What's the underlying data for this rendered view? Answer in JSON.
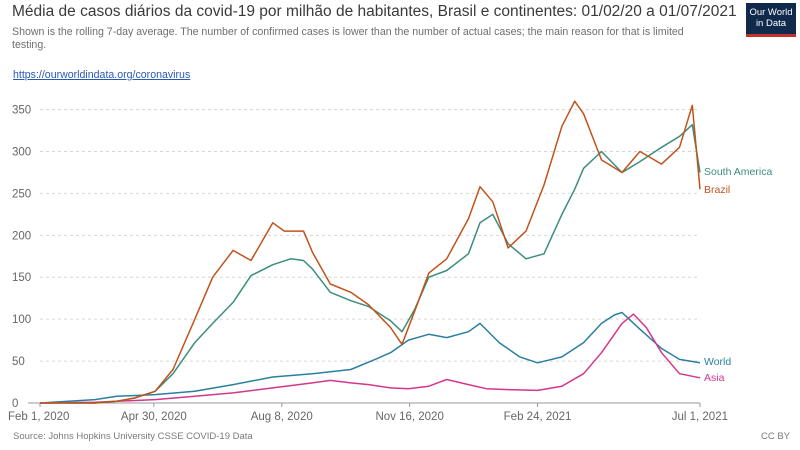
{
  "header": {
    "title": "Média de casos diários da covid-19 por milhão de habitantes, Brasil e continentes: 01/02/20 a 01/07/2021",
    "subtitle": "Shown is the rolling 7-day average. The number of confirmed cases is lower than the number of actual cases; the main reason for that is limited testing.",
    "link": "https://ourworldindata.org/coronavirus"
  },
  "logo": {
    "line1": "Our World",
    "line2": "in Data"
  },
  "footer": {
    "source": "Source: Johns Hopkins University CSSE COVID-19 Data",
    "license": "CC BY"
  },
  "chart_data": {
    "type": "line",
    "title": "Média de casos diários da covid-19 por milhão de habitantes, Brasil e continentes: 01/02/20 a 01/07/2021",
    "xlabel": "",
    "ylabel": "",
    "x_ticks": [
      "Feb 1, 2020",
      "Apr 30, 2020",
      "Aug 8, 2020",
      "Nov 16, 2020",
      "Feb 24, 2021",
      "Jul 1, 2021"
    ],
    "y_ticks": [
      0,
      50,
      100,
      150,
      200,
      250,
      300,
      350
    ],
    "xlim": [
      "2020-02-01",
      "2021-07-01"
    ],
    "ylim": [
      0,
      365
    ],
    "grid": "horizontal dashed",
    "legend": "labels at line ends (right)",
    "series": [
      {
        "name": "South America",
        "color": "#3c8d7e",
        "x": [
          "2020-02-01",
          "2020-03-15",
          "2020-04-01",
          "2020-04-15",
          "2020-05-01",
          "2020-05-15",
          "2020-06-01",
          "2020-06-15",
          "2020-07-01",
          "2020-07-15",
          "2020-08-01",
          "2020-08-15",
          "2020-08-25",
          "2020-09-01",
          "2020-09-15",
          "2020-10-01",
          "2020-10-15",
          "2020-11-01",
          "2020-11-10",
          "2020-11-20",
          "2020-12-01",
          "2020-12-15",
          "2021-01-01",
          "2021-01-10",
          "2021-01-20",
          "2021-02-01",
          "2021-02-15",
          "2021-03-01",
          "2021-03-15",
          "2021-03-25",
          "2021-04-01",
          "2021-04-15",
          "2021-05-01",
          "2021-05-15",
          "2021-06-01",
          "2021-06-15",
          "2021-06-25",
          "2021-07-01"
        ],
        "y": [
          0,
          0,
          2,
          6,
          14,
          35,
          72,
          95,
          120,
          152,
          165,
          172,
          170,
          160,
          132,
          122,
          115,
          98,
          85,
          112,
          150,
          158,
          178,
          215,
          225,
          190,
          172,
          178,
          225,
          255,
          280,
          300,
          275,
          288,
          305,
          318,
          332,
          275
        ]
      },
      {
        "name": "Brazil",
        "color": "#c0531c",
        "x": [
          "2020-02-01",
          "2020-03-15",
          "2020-04-01",
          "2020-04-15",
          "2020-05-01",
          "2020-05-15",
          "2020-06-01",
          "2020-06-15",
          "2020-07-01",
          "2020-07-15",
          "2020-08-01",
          "2020-08-10",
          "2020-08-25",
          "2020-09-01",
          "2020-09-15",
          "2020-10-01",
          "2020-10-15",
          "2020-11-01",
          "2020-11-10",
          "2020-11-20",
          "2020-12-01",
          "2020-12-15",
          "2021-01-01",
          "2021-01-10",
          "2021-01-20",
          "2021-02-01",
          "2021-02-15",
          "2021-03-01",
          "2021-03-15",
          "2021-03-25",
          "2021-04-01",
          "2021-04-15",
          "2021-05-01",
          "2021-05-15",
          "2021-06-01",
          "2021-06-15",
          "2021-06-25",
          "2021-07-01"
        ],
        "y": [
          0,
          0,
          2,
          6,
          14,
          40,
          100,
          150,
          182,
          170,
          215,
          205,
          205,
          180,
          142,
          132,
          117,
          90,
          70,
          110,
          155,
          172,
          220,
          258,
          240,
          185,
          205,
          260,
          330,
          360,
          345,
          290,
          275,
          300,
          285,
          305,
          355,
          255
        ]
      },
      {
        "name": "World",
        "color": "#2a7fa0",
        "x": [
          "2020-02-01",
          "2020-03-15",
          "2020-04-01",
          "2020-05-01",
          "2020-06-01",
          "2020-07-01",
          "2020-08-01",
          "2020-09-01",
          "2020-10-01",
          "2020-10-20",
          "2020-11-01",
          "2020-11-15",
          "2020-12-01",
          "2020-12-15",
          "2021-01-01",
          "2021-01-10",
          "2021-01-25",
          "2021-02-10",
          "2021-02-24",
          "2021-03-15",
          "2021-04-01",
          "2021-04-15",
          "2021-04-25",
          "2021-05-01",
          "2021-05-15",
          "2021-06-01",
          "2021-06-15",
          "2021-07-01"
        ],
        "y": [
          0,
          4,
          8,
          10,
          14,
          22,
          31,
          35,
          40,
          52,
          60,
          75,
          82,
          78,
          85,
          95,
          72,
          55,
          48,
          55,
          72,
          95,
          105,
          108,
          88,
          65,
          52,
          48
        ]
      },
      {
        "name": "Asia",
        "color": "#d4368a",
        "x": [
          "2020-02-01",
          "2020-03-15",
          "2020-04-01",
          "2020-05-01",
          "2020-06-01",
          "2020-07-01",
          "2020-08-01",
          "2020-09-01",
          "2020-09-15",
          "2020-10-01",
          "2020-10-15",
          "2020-11-01",
          "2020-11-15",
          "2020-12-01",
          "2020-12-15",
          "2021-01-01",
          "2021-01-15",
          "2021-02-01",
          "2021-02-24",
          "2021-03-15",
          "2021-04-01",
          "2021-04-15",
          "2021-05-01",
          "2021-05-10",
          "2021-05-20",
          "2021-06-01",
          "2021-06-15",
          "2021-07-01"
        ],
        "y": [
          0,
          1,
          2,
          4,
          8,
          12,
          18,
          24,
          27,
          24,
          22,
          18,
          17,
          20,
          28,
          22,
          17,
          16,
          15,
          20,
          35,
          60,
          95,
          106,
          90,
          60,
          35,
          30
        ]
      }
    ]
  }
}
